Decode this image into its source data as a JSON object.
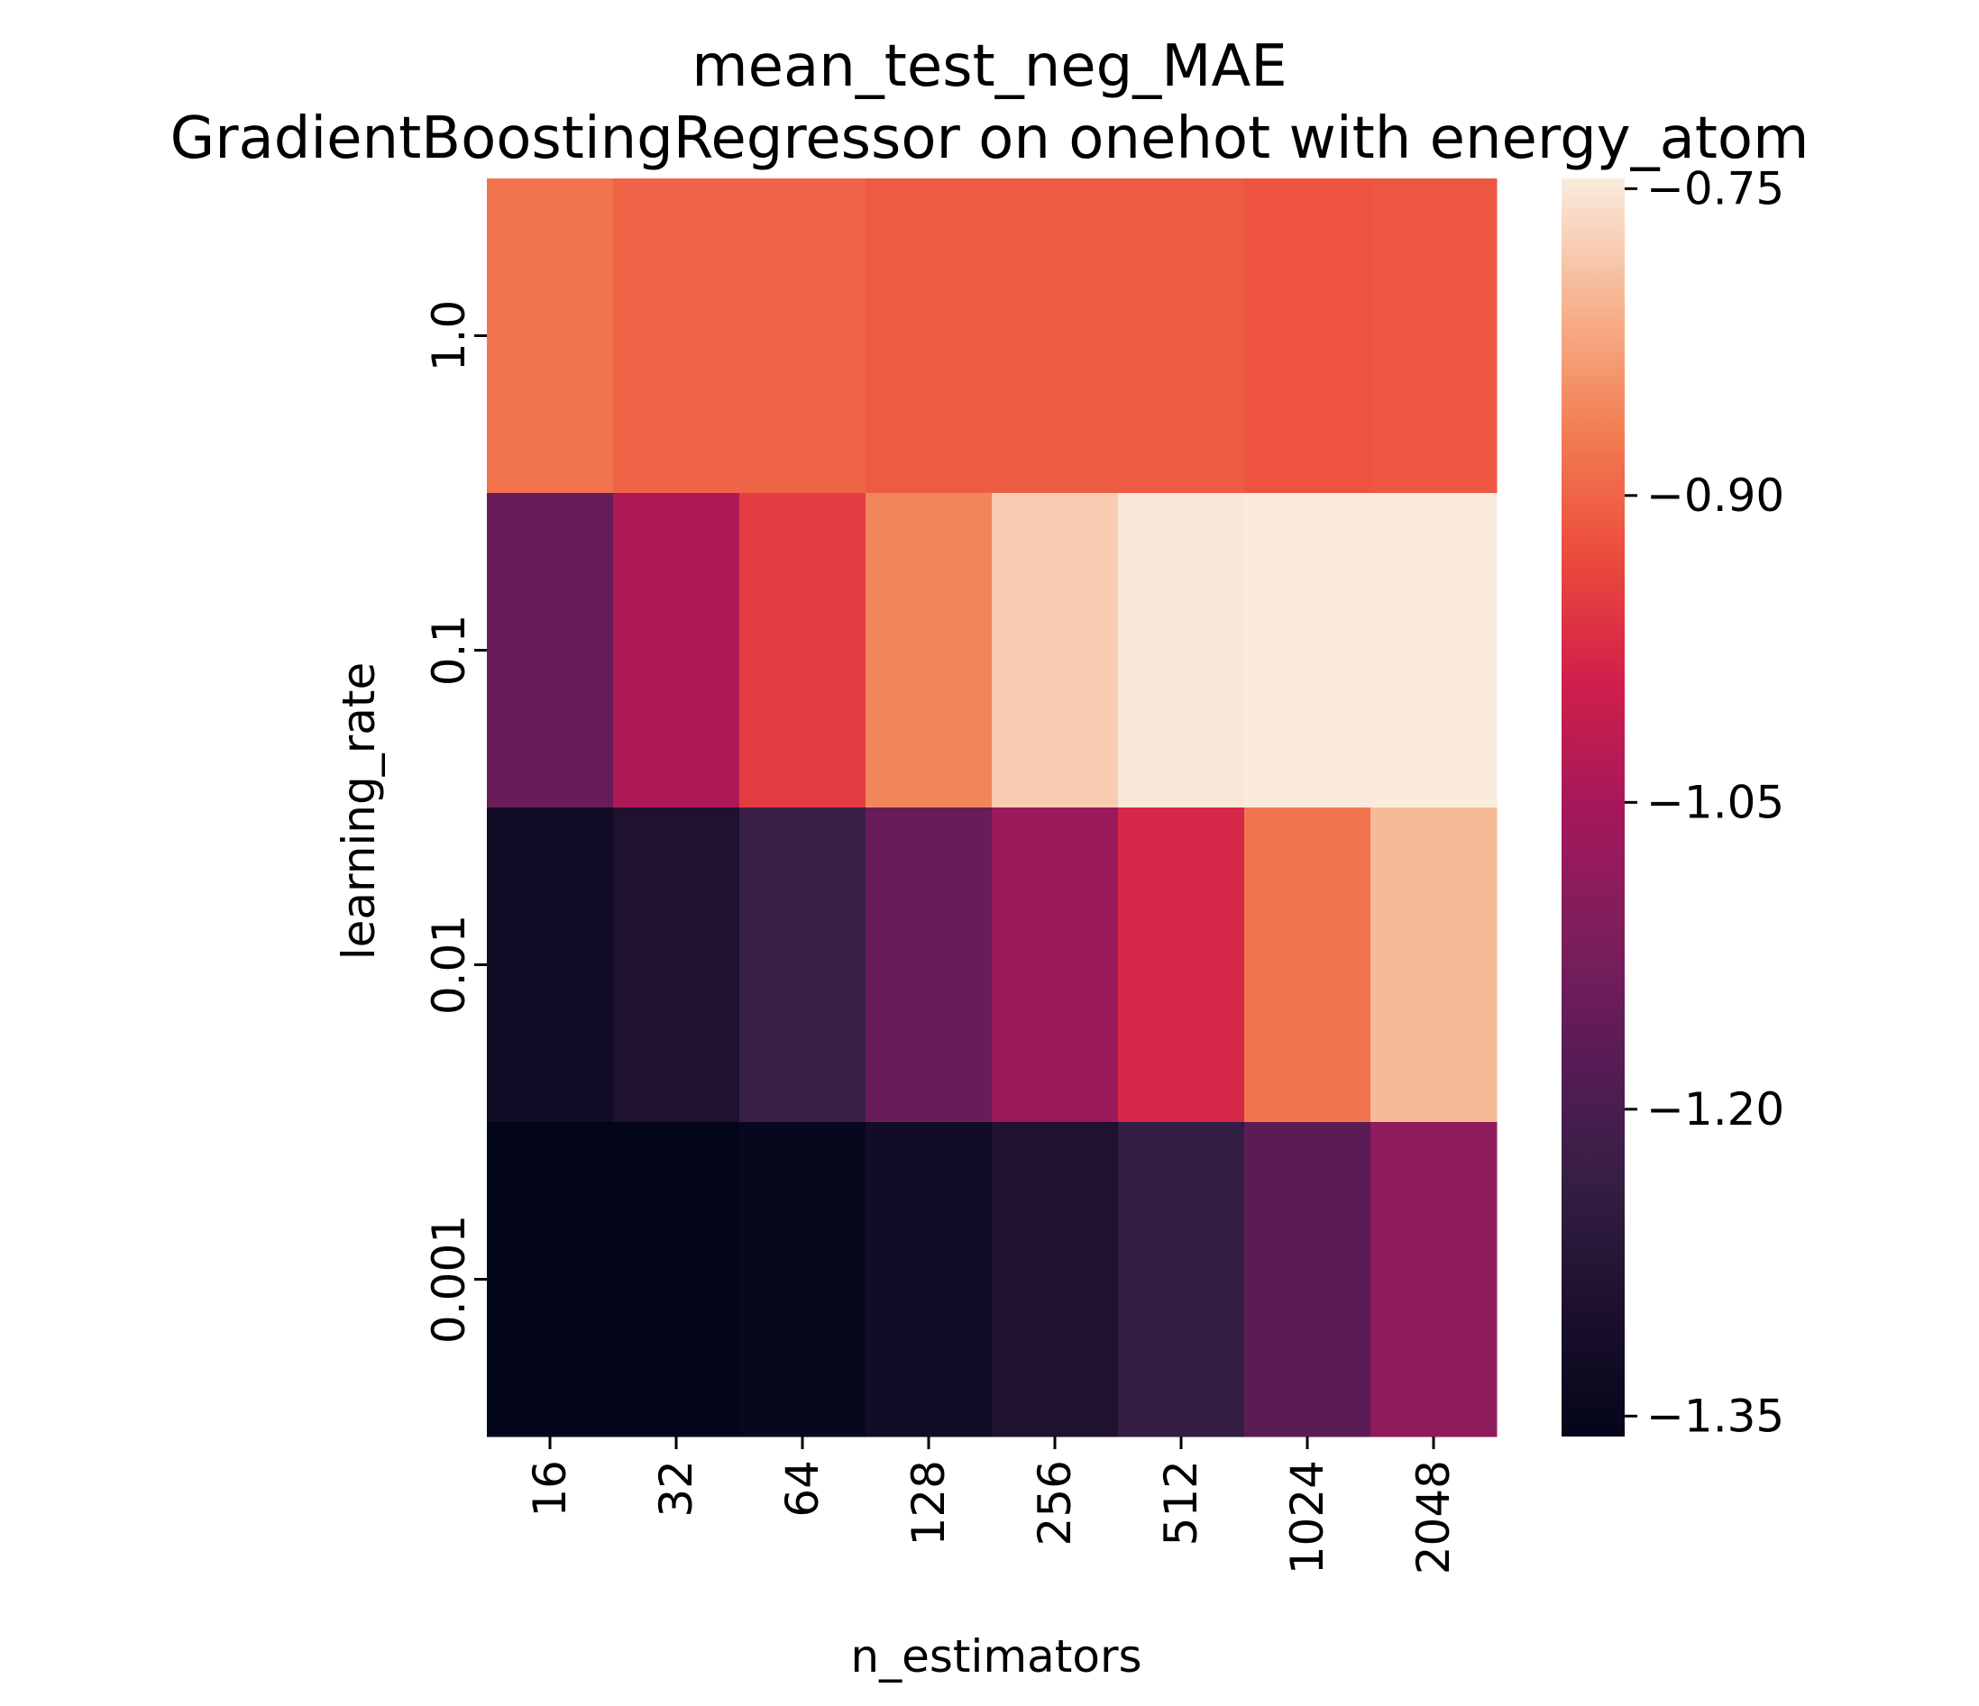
{
  "chart_data": {
    "type": "heatmap",
    "title": "mean_test_neg_MAE",
    "subtitle": "GradientBoostingRegressor on onehot with energy_atom",
    "xlabel": "n_estimators",
    "ylabel": "learning_rate",
    "x_categories": [
      "16",
      "32",
      "64",
      "128",
      "256",
      "512",
      "1024",
      "2048"
    ],
    "y_categories": [
      "1.0",
      "0.1",
      "0.01",
      "0.001"
    ],
    "values": [
      [
        -0.88,
        -0.9,
        -0.9,
        -0.91,
        -0.91,
        -0.91,
        -0.92,
        -0.915
      ],
      [
        -1.15,
        -1.04,
        -0.95,
        -0.86,
        -0.78,
        -0.75,
        -0.745,
        -0.745
      ],
      [
        -1.32,
        -1.29,
        -1.23,
        -1.15,
        -1.07,
        -0.98,
        -0.88,
        -0.8
      ],
      [
        -1.36,
        -1.36,
        -1.35,
        -1.32,
        -1.29,
        -1.24,
        -1.17,
        -1.09
      ]
    ],
    "colorbar": {
      "min": -1.36,
      "max": -0.745,
      "ticks": [
        -0.75,
        -0.9,
        -1.05,
        -1.2,
        -1.35
      ],
      "tick_labels": [
        "−0.75",
        "−0.90",
        "−1.05",
        "−1.20",
        "−1.35"
      ],
      "colormap": "rocket"
    },
    "grid": false
  }
}
